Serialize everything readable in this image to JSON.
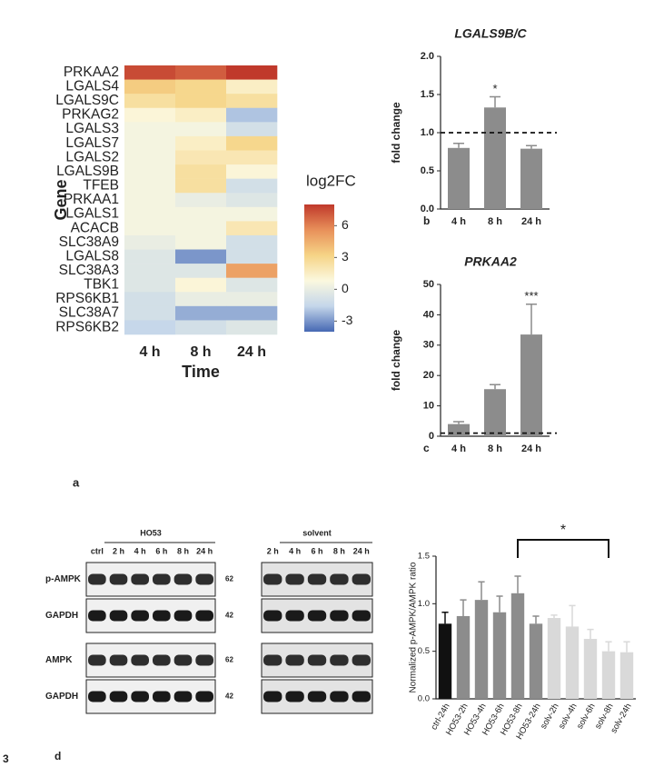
{
  "figure": 3,
  "chart_data": [
    {
      "type": "heatmap",
      "panel": "a",
      "x": [
        "4 h",
        "8 h",
        "24 h"
      ],
      "y": [
        "PRKAA2",
        "LGALS4",
        "LGALS9C",
        "PRKAG2",
        "LGALS3",
        "LGALS7",
        "LGALS2",
        "LGALS9B",
        "TFEB",
        "PRKAA1",
        "LGALS1",
        "ACACB",
        "SLC38A9",
        "LGALS8",
        "SLC38A3",
        "TBK1",
        "RPS6KB1",
        "SLC38A7",
        "RPS6KB2"
      ],
      "label_colors": [
        "#d9312b",
        "#222222",
        "#d9312b",
        "#222222",
        "#222222",
        "#222222",
        "#222222",
        "#d9312b",
        "#222222",
        "#222222",
        "#222222",
        "#222222",
        "#222222",
        "#222222",
        "#222222",
        "#222222",
        "#222222",
        "#222222",
        "#222222"
      ],
      "values": [
        [
          7.5,
          7,
          8
        ],
        [
          3.5,
          3,
          1.5
        ],
        [
          2.5,
          3,
          2.5
        ],
        [
          1,
          1.5,
          -2
        ],
        [
          0.5,
          0.5,
          -1
        ],
        [
          0.5,
          1.5,
          3
        ],
        [
          0.5,
          2,
          2
        ],
        [
          0.5,
          2.5,
          1
        ],
        [
          0.5,
          2.5,
          -1
        ],
        [
          0.5,
          0,
          -0.5
        ],
        [
          0.5,
          0.5,
          0.5
        ],
        [
          0.5,
          0.5,
          2
        ],
        [
          0,
          0.5,
          -1
        ],
        [
          -0.5,
          -3,
          -1
        ],
        [
          -0.5,
          -0.5,
          5
        ],
        [
          -0.5,
          1,
          -0.5
        ],
        [
          -1,
          0,
          0
        ],
        [
          -1,
          -2.5,
          -2.5
        ],
        [
          -1.5,
          -1,
          -0.5
        ]
      ],
      "xlabel": "Time",
      "ylabel": "Gene",
      "colorbar_title": "log2FC",
      "clim": [
        -4,
        8
      ],
      "colorbar_ticks": [
        -3,
        0,
        3,
        6
      ],
      "colormap": [
        "#4668b3",
        "#c4d6ea",
        "#fbf8df",
        "#f6d486",
        "#e8905a",
        "#c0392b"
      ]
    },
    {
      "type": "bar",
      "panel": "b",
      "title": "LGALS9B/C",
      "ylabel": "fold change",
      "categories": [
        "4 h",
        "8 h",
        "24 h"
      ],
      "values": [
        0.8,
        1.33,
        0.79
      ],
      "errors": [
        0.06,
        0.14,
        0.04
      ],
      "significance": [
        null,
        "*",
        null
      ],
      "reference_line": 1,
      "color": "#8c8c8c",
      "ylim": [
        0,
        2
      ],
      "yticks": [
        {
          "value": 0,
          "label": "0.0"
        },
        {
          "value": 0.5,
          "label": "0.5"
        },
        {
          "value": 1,
          "label": "1.0"
        },
        {
          "value": 1.5,
          "label": "1.5"
        },
        {
          "value": 2,
          "label": "2.0"
        }
      ]
    },
    {
      "type": "bar",
      "panel": "c",
      "title": "PRKAA2",
      "ylabel": "fold change",
      "categories": [
        "4 h",
        "8 h",
        "24 h"
      ],
      "values": [
        4,
        15.5,
        33.5
      ],
      "errors": [
        0.8,
        1.5,
        10
      ],
      "significance": [
        null,
        null,
        "***"
      ],
      "reference_line": 1,
      "color": "#8c8c8c",
      "ylim": [
        0,
        50
      ],
      "yticks": [
        0,
        10,
        20,
        30,
        40,
        50
      ]
    },
    {
      "type": "bar",
      "ylabel": "Normalized p-AMPK/AMPK ratio",
      "categories": [
        "ctrl-24h",
        "HO53-2h",
        "HO53-4h",
        "HO53-6h",
        "HO53-8h",
        "HO53-24h",
        "solv-2h",
        "solv-4h",
        "solv-6h",
        "solv-8h",
        "solv-24h"
      ],
      "values": [
        0.79,
        0.87,
        1.04,
        0.91,
        1.11,
        0.79,
        0.85,
        0.76,
        0.63,
        0.5,
        0.49
      ],
      "errors": [
        0.12,
        0.17,
        0.19,
        0.17,
        0.18,
        0.08,
        0.03,
        0.22,
        0.1,
        0.1,
        0.11
      ],
      "colors": [
        "#111111",
        "#8c8c8c",
        "#8c8c8c",
        "#8c8c8c",
        "#8c8c8c",
        "#8c8c8c",
        "#d9d9d9",
        "#d9d9d9",
        "#d9d9d9",
        "#d9d9d9",
        "#d9d9d9"
      ],
      "bracket": {
        "between": [
          "HO53-8h",
          "solv-8h"
        ],
        "label": "*"
      },
      "ylim": [
        0,
        1.5
      ],
      "yticks": [
        {
          "value": 0,
          "label": "0.0"
        },
        {
          "value": 0.5,
          "label": "0.5"
        },
        {
          "value": 1,
          "label": "1.0"
        },
        {
          "value": 1.5,
          "label": "1.5"
        }
      ]
    }
  ],
  "blot": {
    "panel": "d",
    "groups": [
      {
        "name": "HO53",
        "lanes": [
          "ctrl",
          "2 h",
          "4 h",
          "6 h",
          "8 h",
          "24 h"
        ]
      },
      {
        "name": "solvent",
        "lanes": [
          "2 h",
          "4 h",
          "6 h",
          "8 h",
          "24 h"
        ]
      }
    ],
    "rows": [
      {
        "name": "p-AMPK",
        "kda": 62
      },
      {
        "name": "GAPDH",
        "kda": 42
      },
      {
        "name": "AMPK",
        "kda": 62
      },
      {
        "name": "GAPDH",
        "kda": 42
      }
    ]
  }
}
